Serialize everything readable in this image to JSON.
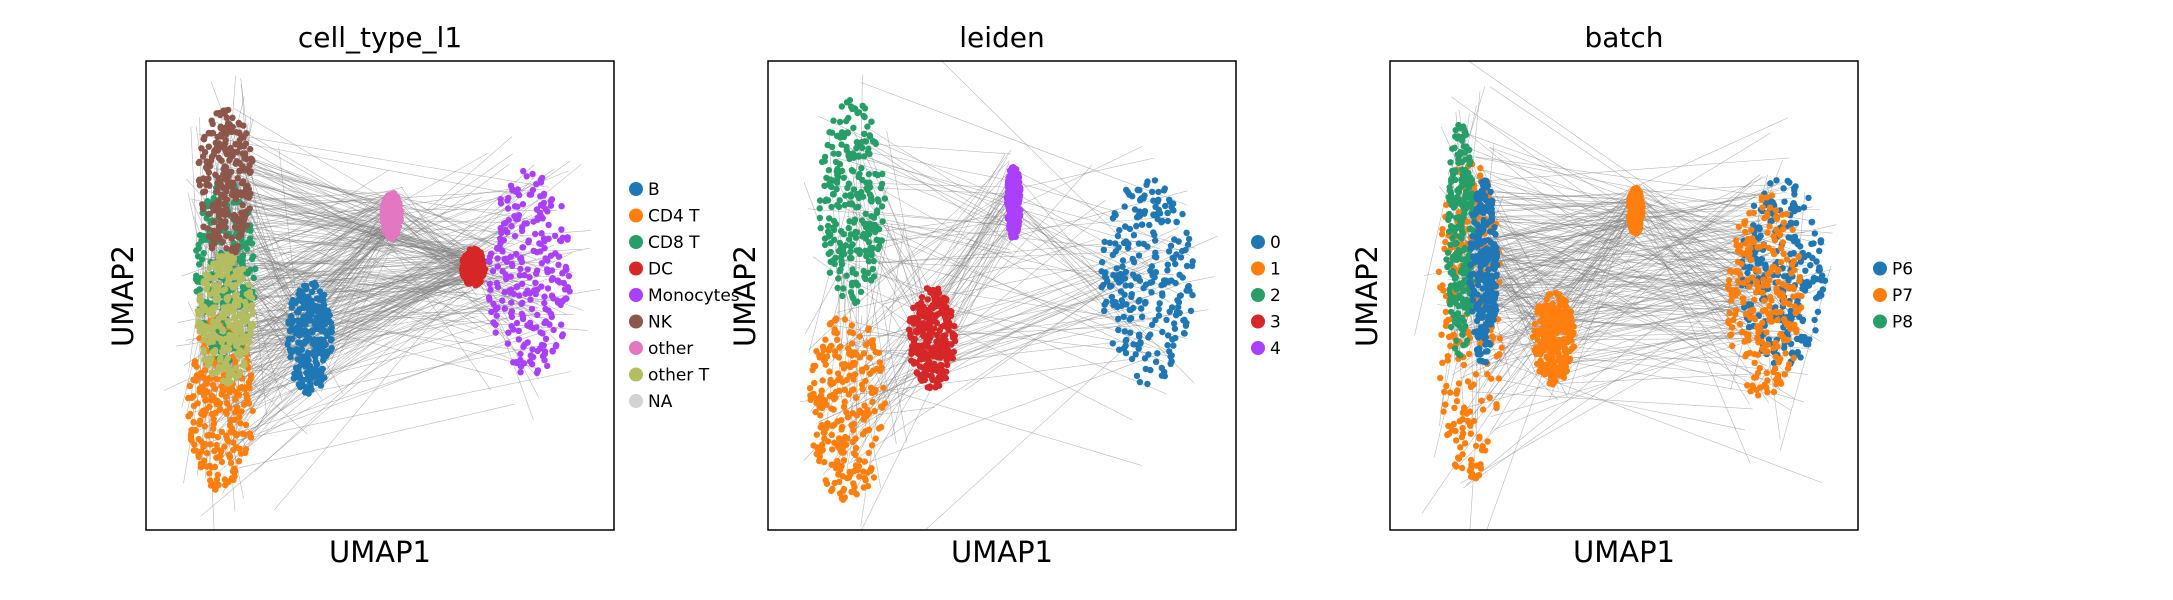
{
  "chart_data": [
    {
      "type": "scatter",
      "title": "cell_type_l1",
      "xlabel": "UMAP1",
      "ylabel": "UMAP2",
      "grid": false,
      "ticks": "none",
      "legend_placement": "right",
      "categories": [
        {
          "name": "B",
          "color": "#1f77b4"
        },
        {
          "name": "CD4 T",
          "color": "#ff7f0e"
        },
        {
          "name": "CD8 T",
          "color": "#279e68"
        },
        {
          "name": "DC",
          "color": "#d62728"
        },
        {
          "name": "Monocytes",
          "color": "#aa40fc"
        },
        {
          "name": "NK",
          "color": "#8c564b"
        },
        {
          "name": "other",
          "color": "#e377c2"
        },
        {
          "name": "other T",
          "color": "#b5bd61"
        },
        {
          "name": "NA",
          "color": "#d3d3d3"
        }
      ],
      "clusters": [
        {
          "category": "CD4 T",
          "cx": 0.16,
          "cy": 0.27,
          "rx": 0.07,
          "ry": 0.19
        },
        {
          "category": "CD8 T",
          "cx": 0.17,
          "cy": 0.55,
          "rx": 0.065,
          "ry": 0.2
        },
        {
          "category": "NK",
          "cx": 0.17,
          "cy": 0.74,
          "rx": 0.06,
          "ry": 0.16
        },
        {
          "category": "other T",
          "cx": 0.17,
          "cy": 0.45,
          "rx": 0.06,
          "ry": 0.14
        },
        {
          "category": "B",
          "cx": 0.35,
          "cy": 0.41,
          "rx": 0.05,
          "ry": 0.12
        },
        {
          "category": "other",
          "cx": 0.525,
          "cy": 0.67,
          "rx": 0.02,
          "ry": 0.05
        },
        {
          "category": "DC",
          "cx": 0.7,
          "cy": 0.56,
          "rx": 0.025,
          "ry": 0.04
        },
        {
          "category": "Monocytes",
          "cx": 0.82,
          "cy": 0.55,
          "rx": 0.09,
          "ry": 0.22
        }
      ]
    },
    {
      "type": "scatter",
      "title": "leiden",
      "xlabel": "UMAP1",
      "ylabel": "UMAP2",
      "grid": false,
      "ticks": "none",
      "legend_placement": "right",
      "categories": [
        {
          "name": "0",
          "color": "#1f77b4"
        },
        {
          "name": "1",
          "color": "#ff7f0e"
        },
        {
          "name": "2",
          "color": "#279e68"
        },
        {
          "name": "3",
          "color": "#d62728"
        },
        {
          "name": "4",
          "color": "#aa40fc"
        }
      ],
      "clusters": [
        {
          "category": "1",
          "cx": 0.17,
          "cy": 0.26,
          "rx": 0.085,
          "ry": 0.2
        },
        {
          "category": "2",
          "cx": 0.18,
          "cy": 0.7,
          "rx": 0.07,
          "ry": 0.22
        },
        {
          "category": "3",
          "cx": 0.35,
          "cy": 0.41,
          "rx": 0.05,
          "ry": 0.11
        },
        {
          "category": "4",
          "cx": 0.525,
          "cy": 0.7,
          "rx": 0.015,
          "ry": 0.08
        },
        {
          "category": "0",
          "cx": 0.81,
          "cy": 0.53,
          "rx": 0.1,
          "ry": 0.22
        }
      ]
    },
    {
      "type": "scatter",
      "title": "batch",
      "xlabel": "UMAP1",
      "ylabel": "UMAP2",
      "grid": false,
      "ticks": "none",
      "legend_placement": "right",
      "categories": [
        {
          "name": "P6",
          "color": "#1f77b4"
        },
        {
          "name": "P7",
          "color": "#ff7f0e"
        },
        {
          "name": "P8",
          "color": "#279e68"
        }
      ],
      "clusters": [
        {
          "category": "P7",
          "cx": 0.17,
          "cy": 0.45,
          "rx": 0.07,
          "ry": 0.35
        },
        {
          "category": "P8",
          "cx": 0.15,
          "cy": 0.62,
          "rx": 0.03,
          "ry": 0.25
        },
        {
          "category": "P6",
          "cx": 0.2,
          "cy": 0.55,
          "rx": 0.03,
          "ry": 0.2
        },
        {
          "category": "P7",
          "cx": 0.35,
          "cy": 0.41,
          "rx": 0.045,
          "ry": 0.1
        },
        {
          "category": "P7",
          "cx": 0.525,
          "cy": 0.68,
          "rx": 0.015,
          "ry": 0.05
        },
        {
          "category": "P6",
          "cx": 0.84,
          "cy": 0.55,
          "rx": 0.09,
          "ry": 0.2
        },
        {
          "category": "P7",
          "cx": 0.8,
          "cy": 0.5,
          "rx": 0.08,
          "ry": 0.22
        }
      ]
    }
  ]
}
